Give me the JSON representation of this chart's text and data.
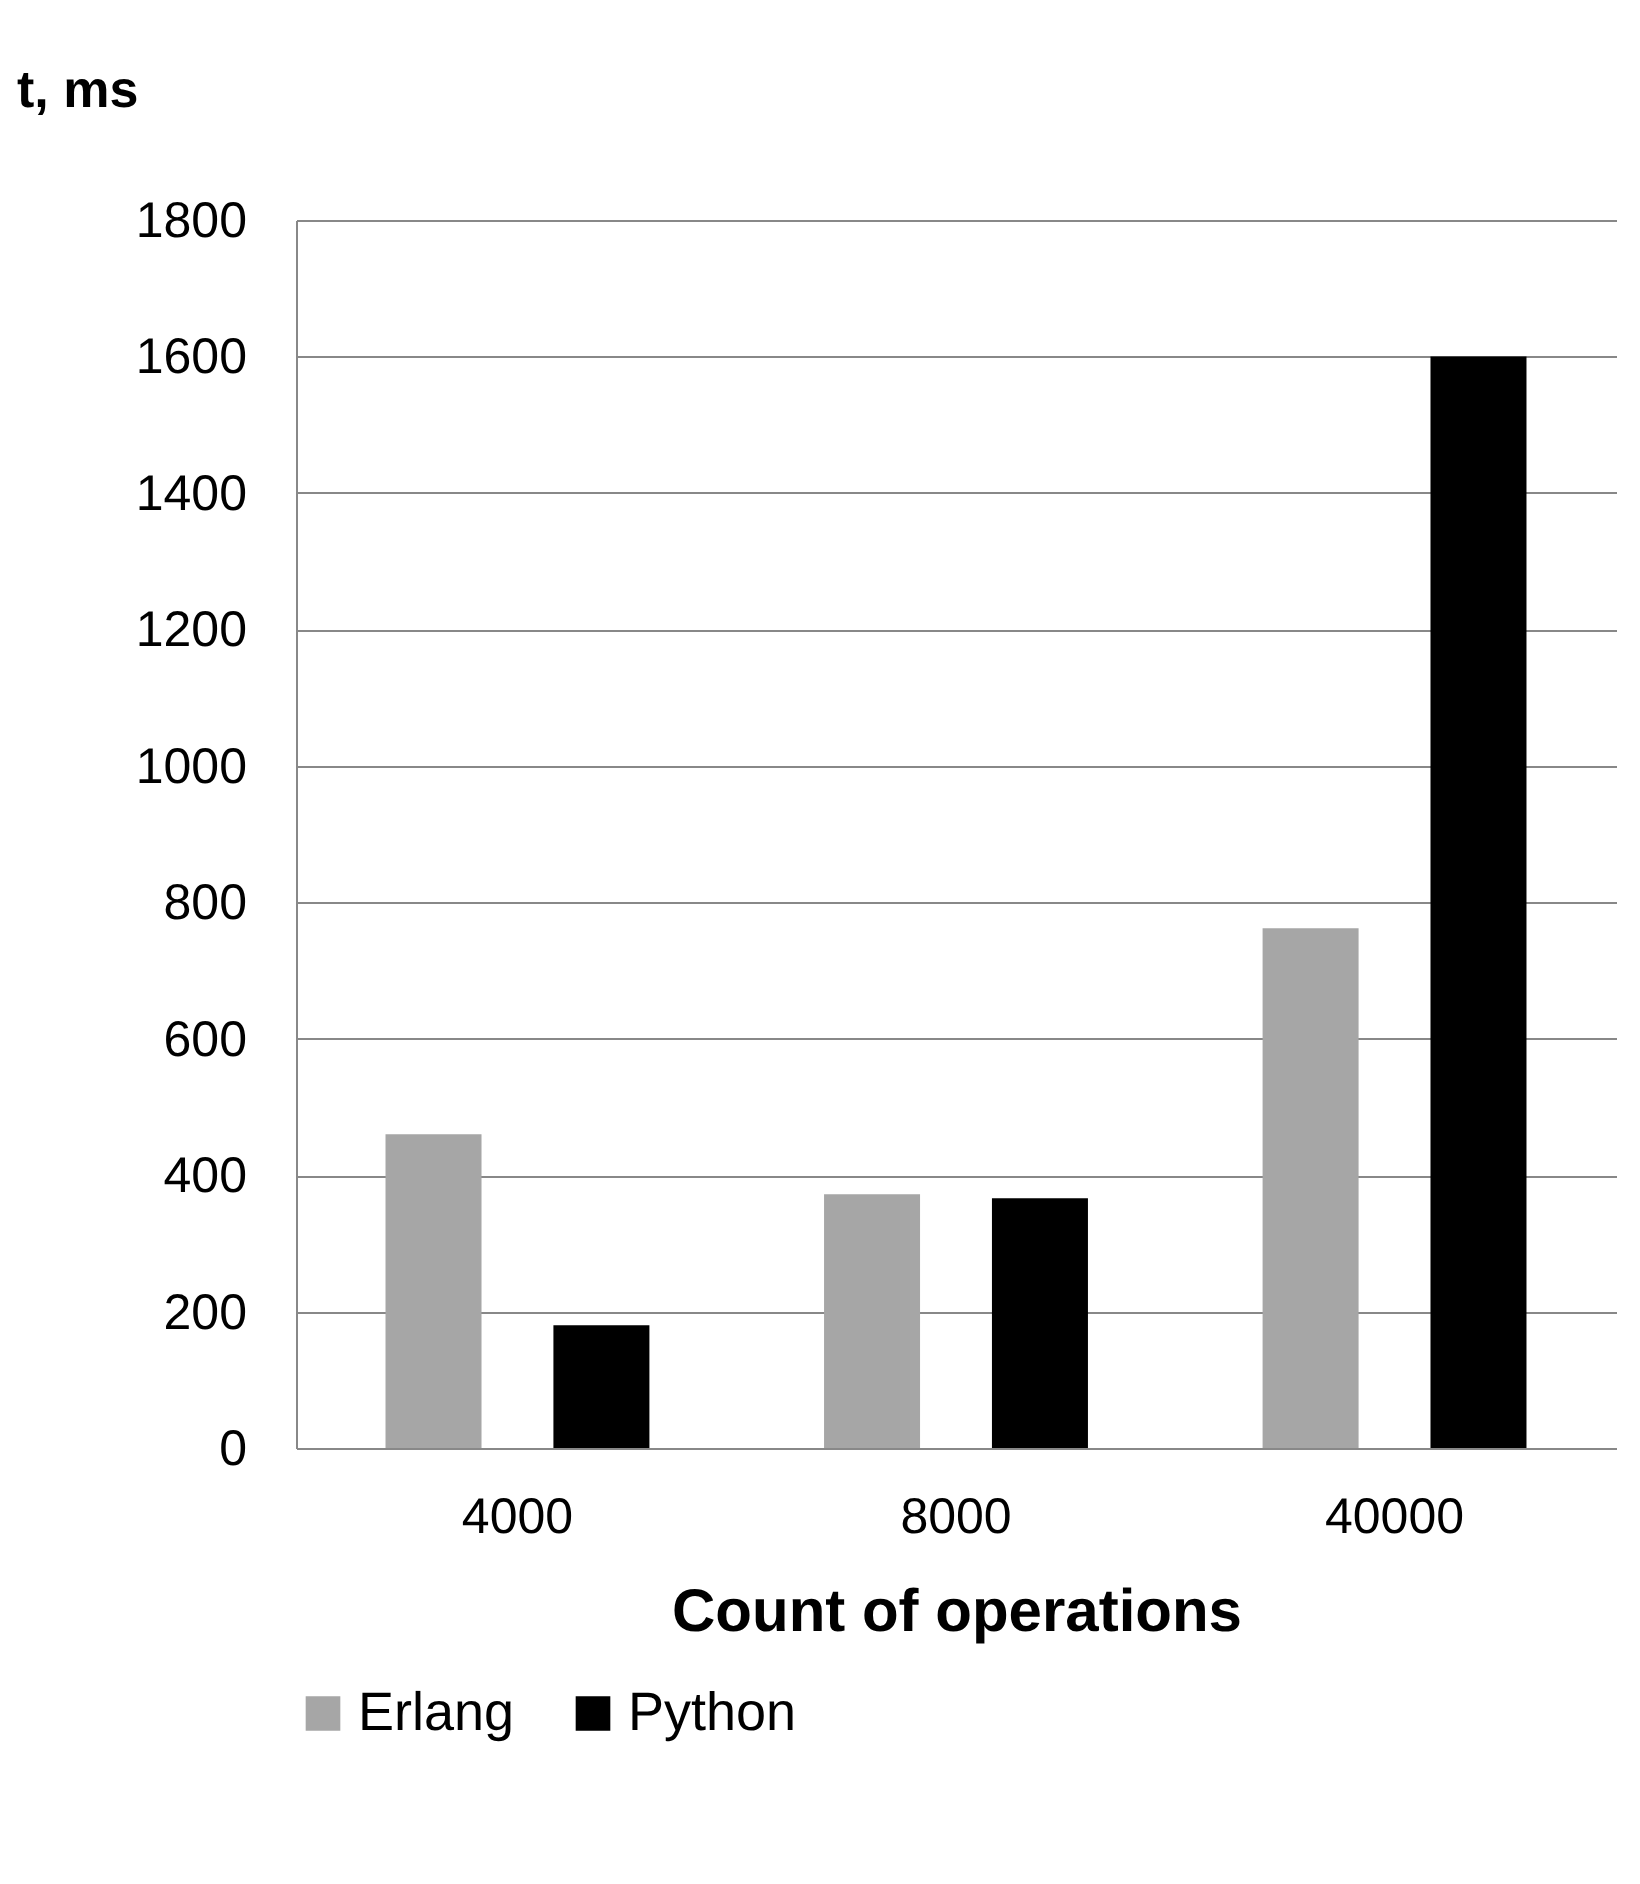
{
  "chart_data": {
    "type": "bar",
    "xlabel": "Count of operations",
    "ylabel": "t, ms",
    "categories": [
      "4000",
      "8000",
      "40000"
    ],
    "series": [
      {
        "name": "Erlang",
        "color": "#a6a6a6",
        "values": [
          460,
          372,
          762
        ]
      },
      {
        "name": "Python",
        "color": "#000000",
        "values": [
          180,
          366,
          1600
        ]
      }
    ],
    "ylim": [
      0,
      1800
    ],
    "yticks": [
      0,
      200,
      400,
      600,
      800,
      1000,
      1200,
      1400,
      1600,
      1800
    ],
    "grid": "y",
    "legend": "bottom"
  }
}
